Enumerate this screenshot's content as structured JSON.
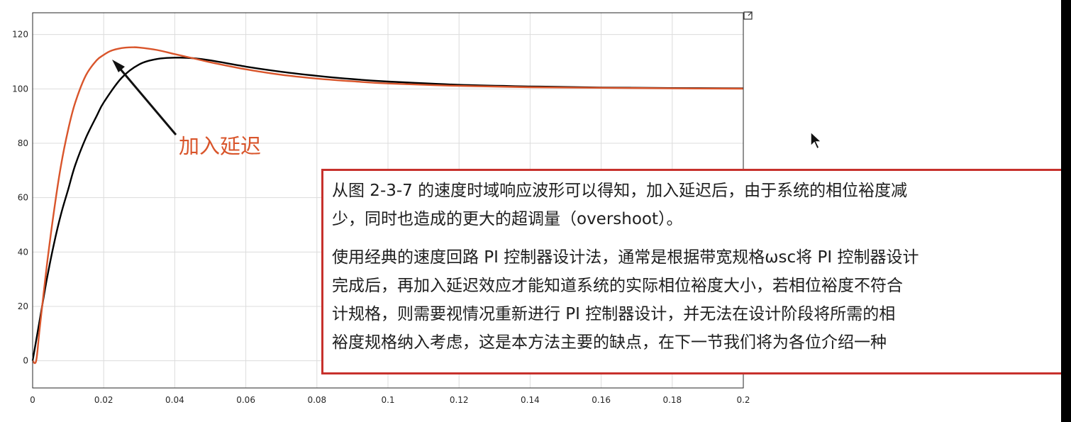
{
  "chart_data": {
    "type": "line",
    "title": "",
    "xlabel": "",
    "ylabel": "",
    "xlim": [
      0,
      0.2
    ],
    "ylim": [
      -10,
      128
    ],
    "grid": true,
    "x_ticks": [
      "0",
      "0.02",
      "0.04",
      "0.06",
      "0.08",
      "0.1",
      "0.12",
      "0.14",
      "0.16",
      "0.18",
      "0.2"
    ],
    "x_tick_values": [
      0,
      0.02,
      0.04,
      0.06,
      0.08,
      0.1,
      0.12,
      0.14,
      0.16,
      0.18,
      0.2
    ],
    "y_ticks": [
      "0",
      "20",
      "40",
      "60",
      "80",
      "100",
      "120"
    ],
    "y_tick_values": [
      0,
      20,
      40,
      60,
      80,
      100,
      120
    ],
    "series": [
      {
        "color": "#000000",
        "x": [
          0,
          0.002,
          0.004,
          0.006,
          0.008,
          0.01,
          0.012,
          0.015,
          0.018,
          0.02,
          0.025,
          0.03,
          0.035,
          0.04,
          0.045,
          0.05,
          0.06,
          0.07,
          0.08,
          0.09,
          0.1,
          0.12,
          0.14,
          0.16,
          0.18,
          0.2
        ],
        "y": [
          0,
          15,
          30,
          43,
          54,
          63,
          72,
          82,
          90,
          95,
          104,
          109,
          111,
          111.5,
          111.3,
          110.5,
          108.2,
          106.3,
          104.8,
          103.6,
          102.7,
          101.5,
          100.9,
          100.5,
          100.3,
          100.2
        ]
      },
      {
        "color": "#d9552b",
        "x": [
          0,
          0.001,
          0.002,
          0.004,
          0.006,
          0.008,
          0.01,
          0.012,
          0.015,
          0.018,
          0.02,
          0.022,
          0.025,
          0.028,
          0.03,
          0.035,
          0.04,
          0.045,
          0.05,
          0.06,
          0.07,
          0.08,
          0.09,
          0.1,
          0.12,
          0.14,
          0.16,
          0.18,
          0.2
        ],
        "y": [
          0,
          0,
          12,
          35,
          55,
          72,
          85,
          95,
          105,
          110.5,
          112.5,
          114,
          115,
          115.3,
          115.2,
          114.3,
          112.8,
          111.3,
          109.8,
          107.2,
          105.2,
          103.8,
          102.8,
          102,
          101.1,
          100.6,
          100.4,
          100.2,
          100.1
        ]
      }
    ],
    "annotation": "加入延迟"
  },
  "colors": {
    "axis": "#262626",
    "grid": "#dcdcdc",
    "annotation": "#d9552b",
    "box_border": "#c7312c"
  },
  "textbox": {
    "para1": [
      "从图 2-3-7 的速度时域响应波形可以得知，加入延迟后，由于系统的相位裕度减",
      "少，同时也造成的更大的超调量（overshoot）。"
    ],
    "para2": [
      "使用经典的速度回路 PI 控制器设计法，通常是根据带宽规格ωsc将 PI 控制器设计",
      "完成后，再加入延迟效应才能知道系统的实际相位裕度大小，若相位裕度不符合",
      "计规格，则需要视情况重新进行 PI 控制器设计，并无法在设计阶段将所需的相",
      "裕度规格纳入考虑，这是本方法主要的缺点，在下一节我们将为各位介绍一种"
    ]
  },
  "icons": {
    "cursor": "mouse-cursor-icon",
    "expand": "expand-axes-icon"
  }
}
